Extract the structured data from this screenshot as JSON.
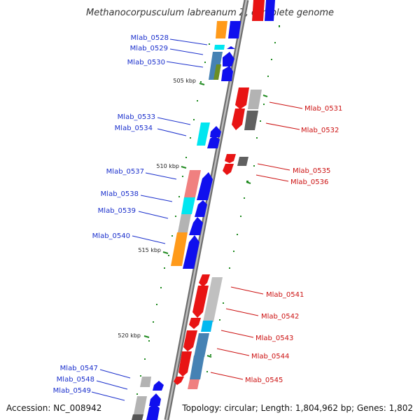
{
  "title": "Methanocorpusculum labreanum Z, complete genome",
  "footer": {
    "accession": "Accession: NC_008942",
    "topology": "Topology: circular; Length: 1,804,962 bp; Genes: 1,802"
  },
  "colors": {
    "backbone": "#8c8c8c",
    "forward_label": "#1a2fcc",
    "reverse_label": "#cc1111",
    "tick": "#1f8a1f",
    "strand_forward": "#0b1ee0",
    "strand_reverse": "#e01010"
  },
  "scale_marks": [
    "505 kbp",
    "510 kbp",
    "515 kbp",
    "520 kbp"
  ],
  "genes_forward": [
    {
      "label": "Mlab_0528",
      "category_color": "#00e0f0"
    },
    {
      "label": "Mlab_0529",
      "category_color": "#ffffff"
    },
    {
      "label": "Mlab_0530",
      "category_color": "#4682b4"
    },
    {
      "label": "Mlab_0533",
      "category_color": "#00e0f0"
    },
    {
      "label": "Mlab_0534",
      "category_color": "#00e0f0"
    },
    {
      "label": "Mlab_0537",
      "category_color": "#f08080"
    },
    {
      "label": "Mlab_0538",
      "category_color": "#00e0f0"
    },
    {
      "label": "Mlab_0539",
      "category_color": "#b0b0b0"
    },
    {
      "label": "Mlab_0540",
      "category_color": "#ff8c00"
    },
    {
      "label": "Mlab_0547",
      "category_color": "#b0b0b0"
    },
    {
      "label": "Mlab_0548",
      "category_color": "#b0b0b0"
    },
    {
      "label": "Mlab_0549",
      "category_color": "#b0b0b0"
    }
  ],
  "genes_reverse": [
    {
      "label": "Mlab_0531",
      "category_color": "#b0b0b0"
    },
    {
      "label": "Mlab_0532",
      "category_color": "#606060"
    },
    {
      "label": "Mlab_0535",
      "category_color": "#606060"
    },
    {
      "label": "Mlab_0536",
      "category_color": "#606060"
    },
    {
      "label": "Mlab_0541",
      "category_color": "#c0c0c0"
    },
    {
      "label": "Mlab_0542",
      "category_color": "#c0c0c0"
    },
    {
      "label": "Mlab_0543",
      "category_color": "#00c8f0"
    },
    {
      "label": "Mlab_0544",
      "category_color": "#4682b4"
    },
    {
      "label": "Mlab_0545",
      "category_color": "#f08080"
    }
  ]
}
